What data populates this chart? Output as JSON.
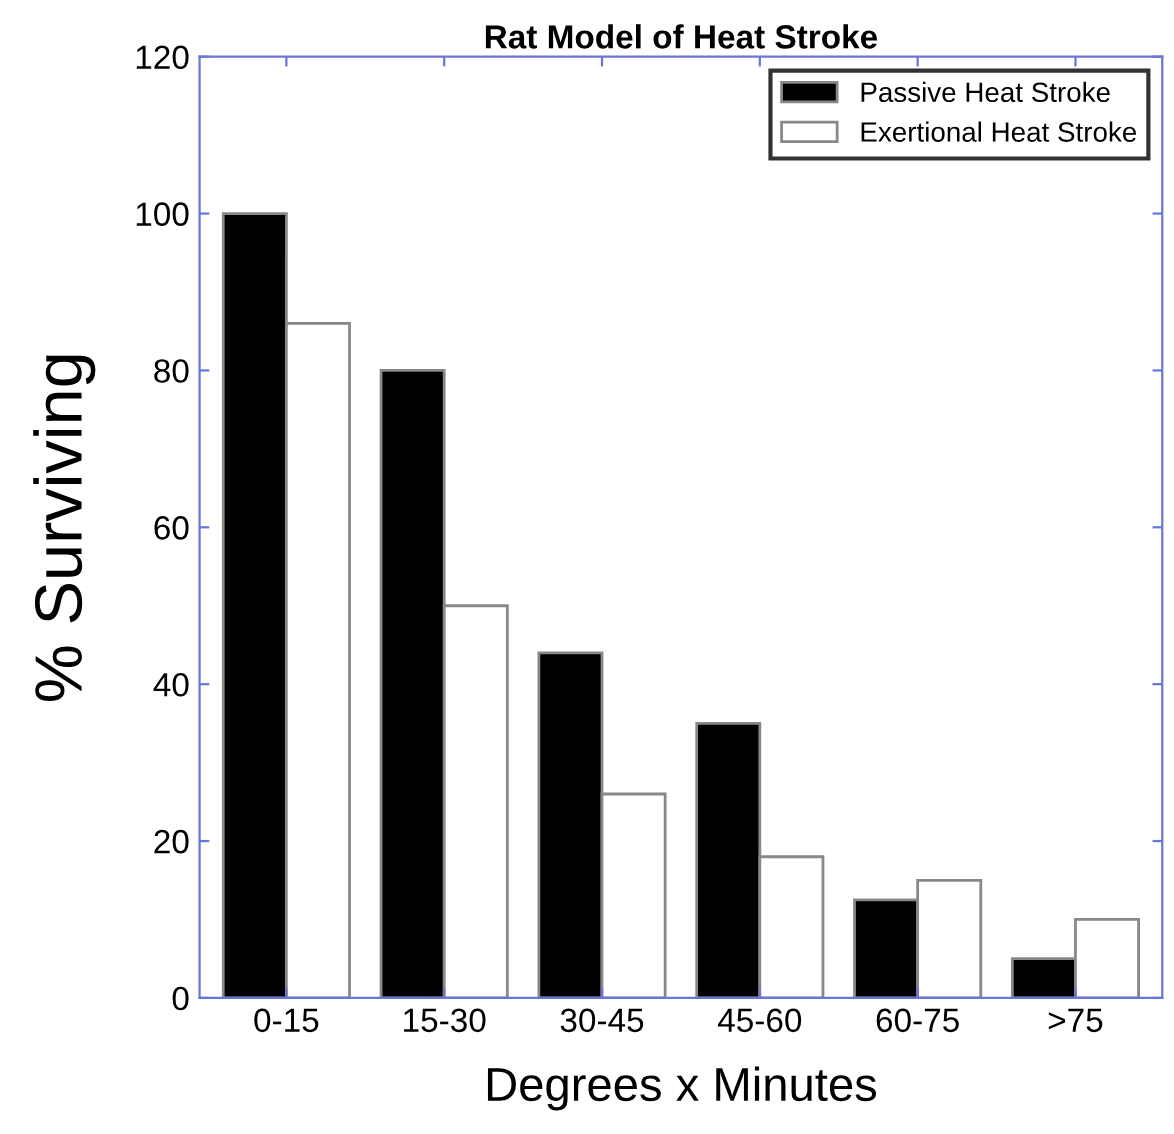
{
  "chart_data": {
    "type": "bar",
    "title": "Rat Model of Heat Stroke",
    "xlabel": "Degrees x Minutes",
    "ylabel": "% Surviving",
    "categories": [
      "0-15",
      "15-30",
      "30-45",
      "45-60",
      "60-75",
      ">75"
    ],
    "series": [
      {
        "name": "Passive Heat Stroke",
        "color": "#000000",
        "values": [
          100,
          80,
          44,
          35,
          12.5,
          5
        ]
      },
      {
        "name": "Exertional Heat Stroke",
        "color": "#ffffff",
        "values": [
          86,
          50,
          26,
          18,
          15,
          10
        ]
      }
    ],
    "ylim": [
      0,
      120
    ],
    "yticks": [
      0,
      20,
      40,
      60,
      80,
      100,
      120
    ],
    "legend": "top right",
    "grid": false
  }
}
